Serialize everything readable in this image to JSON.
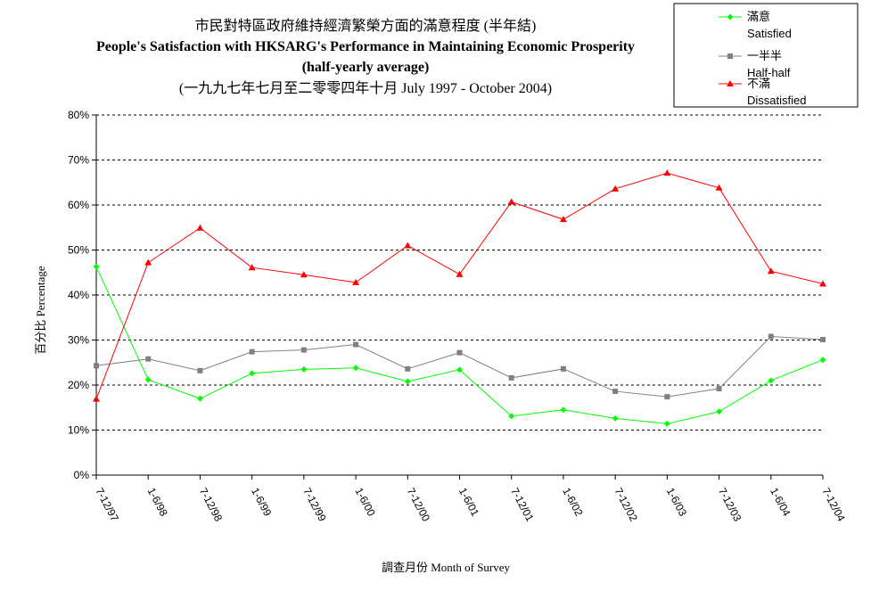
{
  "chart_data": {
    "type": "line",
    "title_lines": [
      "市民對特區政府維持經濟繁榮方面的滿意程度 (半年結)",
      "People's Satisfaction with HKSARG's Performance in Maintaining Economic Prosperity",
      "(half-yearly average)",
      "(一九九七年七月至二零零四年十月 July 1997 - October 2004)"
    ],
    "xlabel": "調查月份 Month of Survey",
    "ylabel": "百分比 Percentage",
    "ylim": [
      0,
      80
    ],
    "yticks": [
      "0%",
      "10%",
      "20%",
      "30%",
      "40%",
      "50%",
      "60%",
      "70%",
      "80%"
    ],
    "categories": [
      "7-12/97",
      "1-6/98",
      "7-12/98",
      "1-6/99",
      "7-12/99",
      "1-6/00",
      "7-12/00",
      "1-6/01",
      "7-12/01",
      "1-6/02",
      "7-12/02",
      "1-6/03",
      "7-12/03",
      "1-6/04",
      "7-12/04"
    ],
    "grid": true,
    "legend_position": "top-right",
    "series": [
      {
        "name_zh": "滿意",
        "name_en": "Satisfied",
        "color": "#00ff00",
        "marker": "diamond",
        "values": [
          46.3,
          21.2,
          17.0,
          22.6,
          23.5,
          23.8,
          20.8,
          23.4,
          13.1,
          14.5,
          12.6,
          11.4,
          14.1,
          21.0,
          25.6
        ]
      },
      {
        "name_zh": "一半半",
        "name_en": "Half-half",
        "color": "#808080",
        "marker": "square",
        "values": [
          24.3,
          25.8,
          23.2,
          27.4,
          27.8,
          29.0,
          23.6,
          27.2,
          21.6,
          23.6,
          18.6,
          17.4,
          19.2,
          30.8,
          30.1
        ]
      },
      {
        "name_zh": "不滿",
        "name_en": "Dissatisfied",
        "color": "#ff0000",
        "marker": "triangle",
        "values": [
          16.9,
          47.2,
          54.9,
          46.1,
          44.5,
          42.8,
          51.0,
          44.6,
          60.7,
          56.8,
          63.6,
          67.1,
          63.8,
          45.3,
          42.5
        ]
      }
    ]
  }
}
